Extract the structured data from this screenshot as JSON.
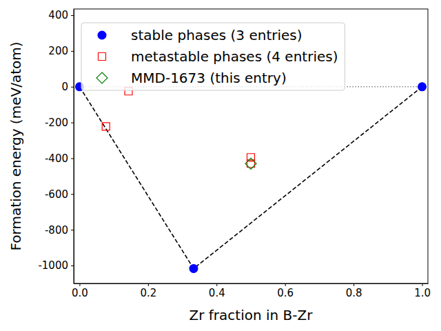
{
  "chart_data": {
    "type": "scatter",
    "x_label": "Zr fraction in B-Zr",
    "y_label": "Formation energy (meV/atom)",
    "xlim": [
      -0.017,
      1.017
    ],
    "ylim": [
      -1100,
      435
    ],
    "xticks": [
      {
        "value": 0,
        "label": "0.0"
      },
      {
        "value": 0.2,
        "label": "0.2"
      },
      {
        "value": 0.4,
        "label": "0.4"
      },
      {
        "value": 0.6,
        "label": "0.6"
      },
      {
        "value": 0.8,
        "label": "0.8"
      },
      {
        "value": 1,
        "label": "1.0"
      }
    ],
    "yticks": [
      -1000,
      -800,
      -600,
      -400,
      -200,
      0,
      200,
      400
    ],
    "legend": "upper left",
    "series": [
      {
        "type": "line",
        "color": "#808080",
        "line_style": "dotted",
        "x": [
          0,
          1
        ],
        "values": [
          0,
          0
        ]
      },
      {
        "type": "line",
        "color": "#000000",
        "line_style": "dashed",
        "x": [
          0,
          0.333,
          1
        ],
        "values": [
          0,
          -1017,
          0
        ]
      },
      {
        "type": "scatter",
        "name": "stable phases (3 entries)",
        "color": "#0000ff",
        "marker": "circle",
        "x": [
          0,
          0.333,
          1
        ],
        "values": [
          0,
          -1017,
          0
        ]
      },
      {
        "type": "scatter",
        "name": "metastable phases (4 entries)",
        "color": "#ff0000",
        "marker": "square",
        "x": [
          0.077,
          0.143,
          0.5,
          0.5
        ],
        "values": [
          -222,
          -25,
          -395,
          -430
        ]
      },
      {
        "type": "scatter",
        "name": "MMD-1673 (this entry)",
        "color": "#008000",
        "marker": "diamond",
        "x": [
          0.5
        ],
        "values": [
          -430
        ]
      }
    ]
  }
}
